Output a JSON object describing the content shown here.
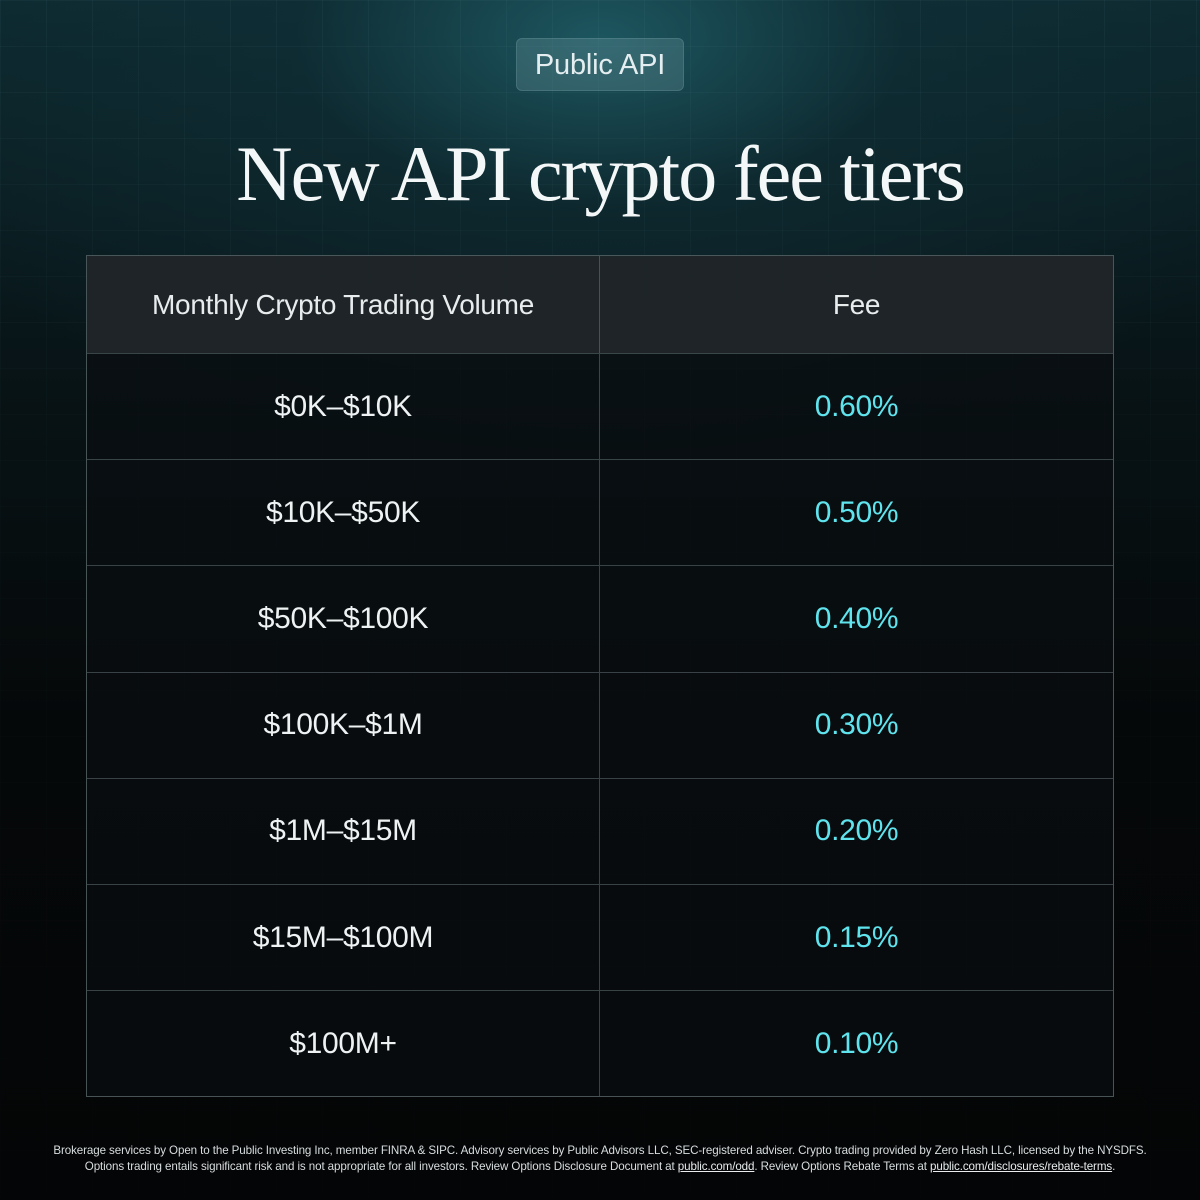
{
  "badge": {
    "label": "Public API"
  },
  "title": "New API crypto fee tiers",
  "table": {
    "headers": {
      "volume": "Monthly Crypto Trading Volume",
      "fee": "Fee"
    },
    "rows": [
      {
        "volume": "$0K–$10K",
        "fee": "0.60%"
      },
      {
        "volume": "$10K–$50K",
        "fee": "0.50%"
      },
      {
        "volume": "$50K–$100K",
        "fee": "0.40%"
      },
      {
        "volume": "$100K–$1M",
        "fee": "0.30%"
      },
      {
        "volume": "$1M–$15M",
        "fee": "0.20%"
      },
      {
        "volume": "$15M–$100M",
        "fee": "0.15%"
      },
      {
        "volume": "$100M+",
        "fee": "0.10%"
      }
    ]
  },
  "disclaimer": {
    "line1": "Brokerage services by Open to the Public Investing Inc, member FINRA & SIPC. Advisory services by Public Advisors LLC, SEC-registered adviser. Crypto trading provided by Zero Hash LLC, licensed by the NYSDFS.",
    "line2_part1": "Options trading entails significant risk and is not appropriate for all investors.  Review Options Disclosure Document at ",
    "link_odd": "public.com/odd",
    "line2_part2": ". Review Options Rebate Terms at ",
    "link_rebate": "public.com/disclosures/rebate-terms",
    "line2_part3": "."
  },
  "colors": {
    "fee_accent": "#5fe4ee",
    "background": "#040607",
    "glow": "#205e68"
  }
}
